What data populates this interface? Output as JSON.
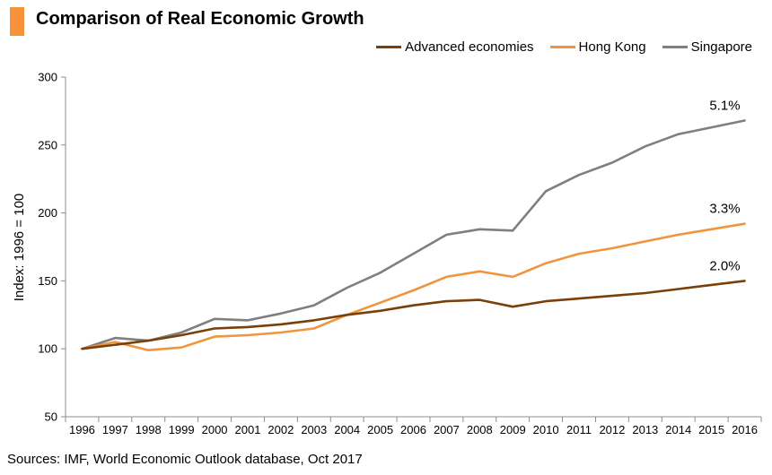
{
  "title": "Comparison of Real Economic Growth",
  "source": "Sources: IMF, World Economic Outlook database, Oct 2017",
  "colors": {
    "accent": "#f7923a",
    "advanced": "#7b3f0a",
    "hongkong": "#f0953d",
    "singapore": "#7f7f7f"
  },
  "chart_data": {
    "type": "line",
    "title": "Comparison of Real Economic Growth",
    "xlabel": "",
    "ylabel": "Index: 1996 = 100",
    "ylim": [
      50,
      300
    ],
    "yticks": [
      50,
      100,
      150,
      200,
      250,
      300
    ],
    "grid": false,
    "legend_position": "top-right",
    "categories": [
      "1996",
      "1997",
      "1998",
      "1999",
      "2000",
      "2001",
      "2002",
      "2003",
      "2004",
      "2005",
      "2006",
      "2007",
      "2008",
      "2009",
      "2010",
      "2011",
      "2012",
      "2013",
      "2014",
      "2015",
      "2016"
    ],
    "series": [
      {
        "name": "Advanced economies",
        "color": "#7b3f0a",
        "values": [
          100,
          103,
          106,
          110,
          115,
          116,
          118,
          121,
          125,
          128,
          132,
          135,
          136,
          131,
          135,
          137,
          139,
          141,
          144,
          147,
          150
        ],
        "end_label": "2.0%"
      },
      {
        "name": "Hong Kong",
        "color": "#f0953d",
        "values": [
          100,
          105,
          99,
          101,
          109,
          110,
          112,
          115,
          125,
          134,
          143,
          153,
          157,
          153,
          163,
          170,
          174,
          179,
          184,
          188,
          192
        ],
        "end_label": "3.3%"
      },
      {
        "name": "Singapore",
        "color": "#7f7f7f",
        "values": [
          100,
          108,
          106,
          112,
          122,
          121,
          126,
          132,
          145,
          156,
          170,
          184,
          188,
          187,
          216,
          228,
          237,
          249,
          258,
          263,
          268
        ],
        "end_label": "5.1%"
      }
    ]
  }
}
